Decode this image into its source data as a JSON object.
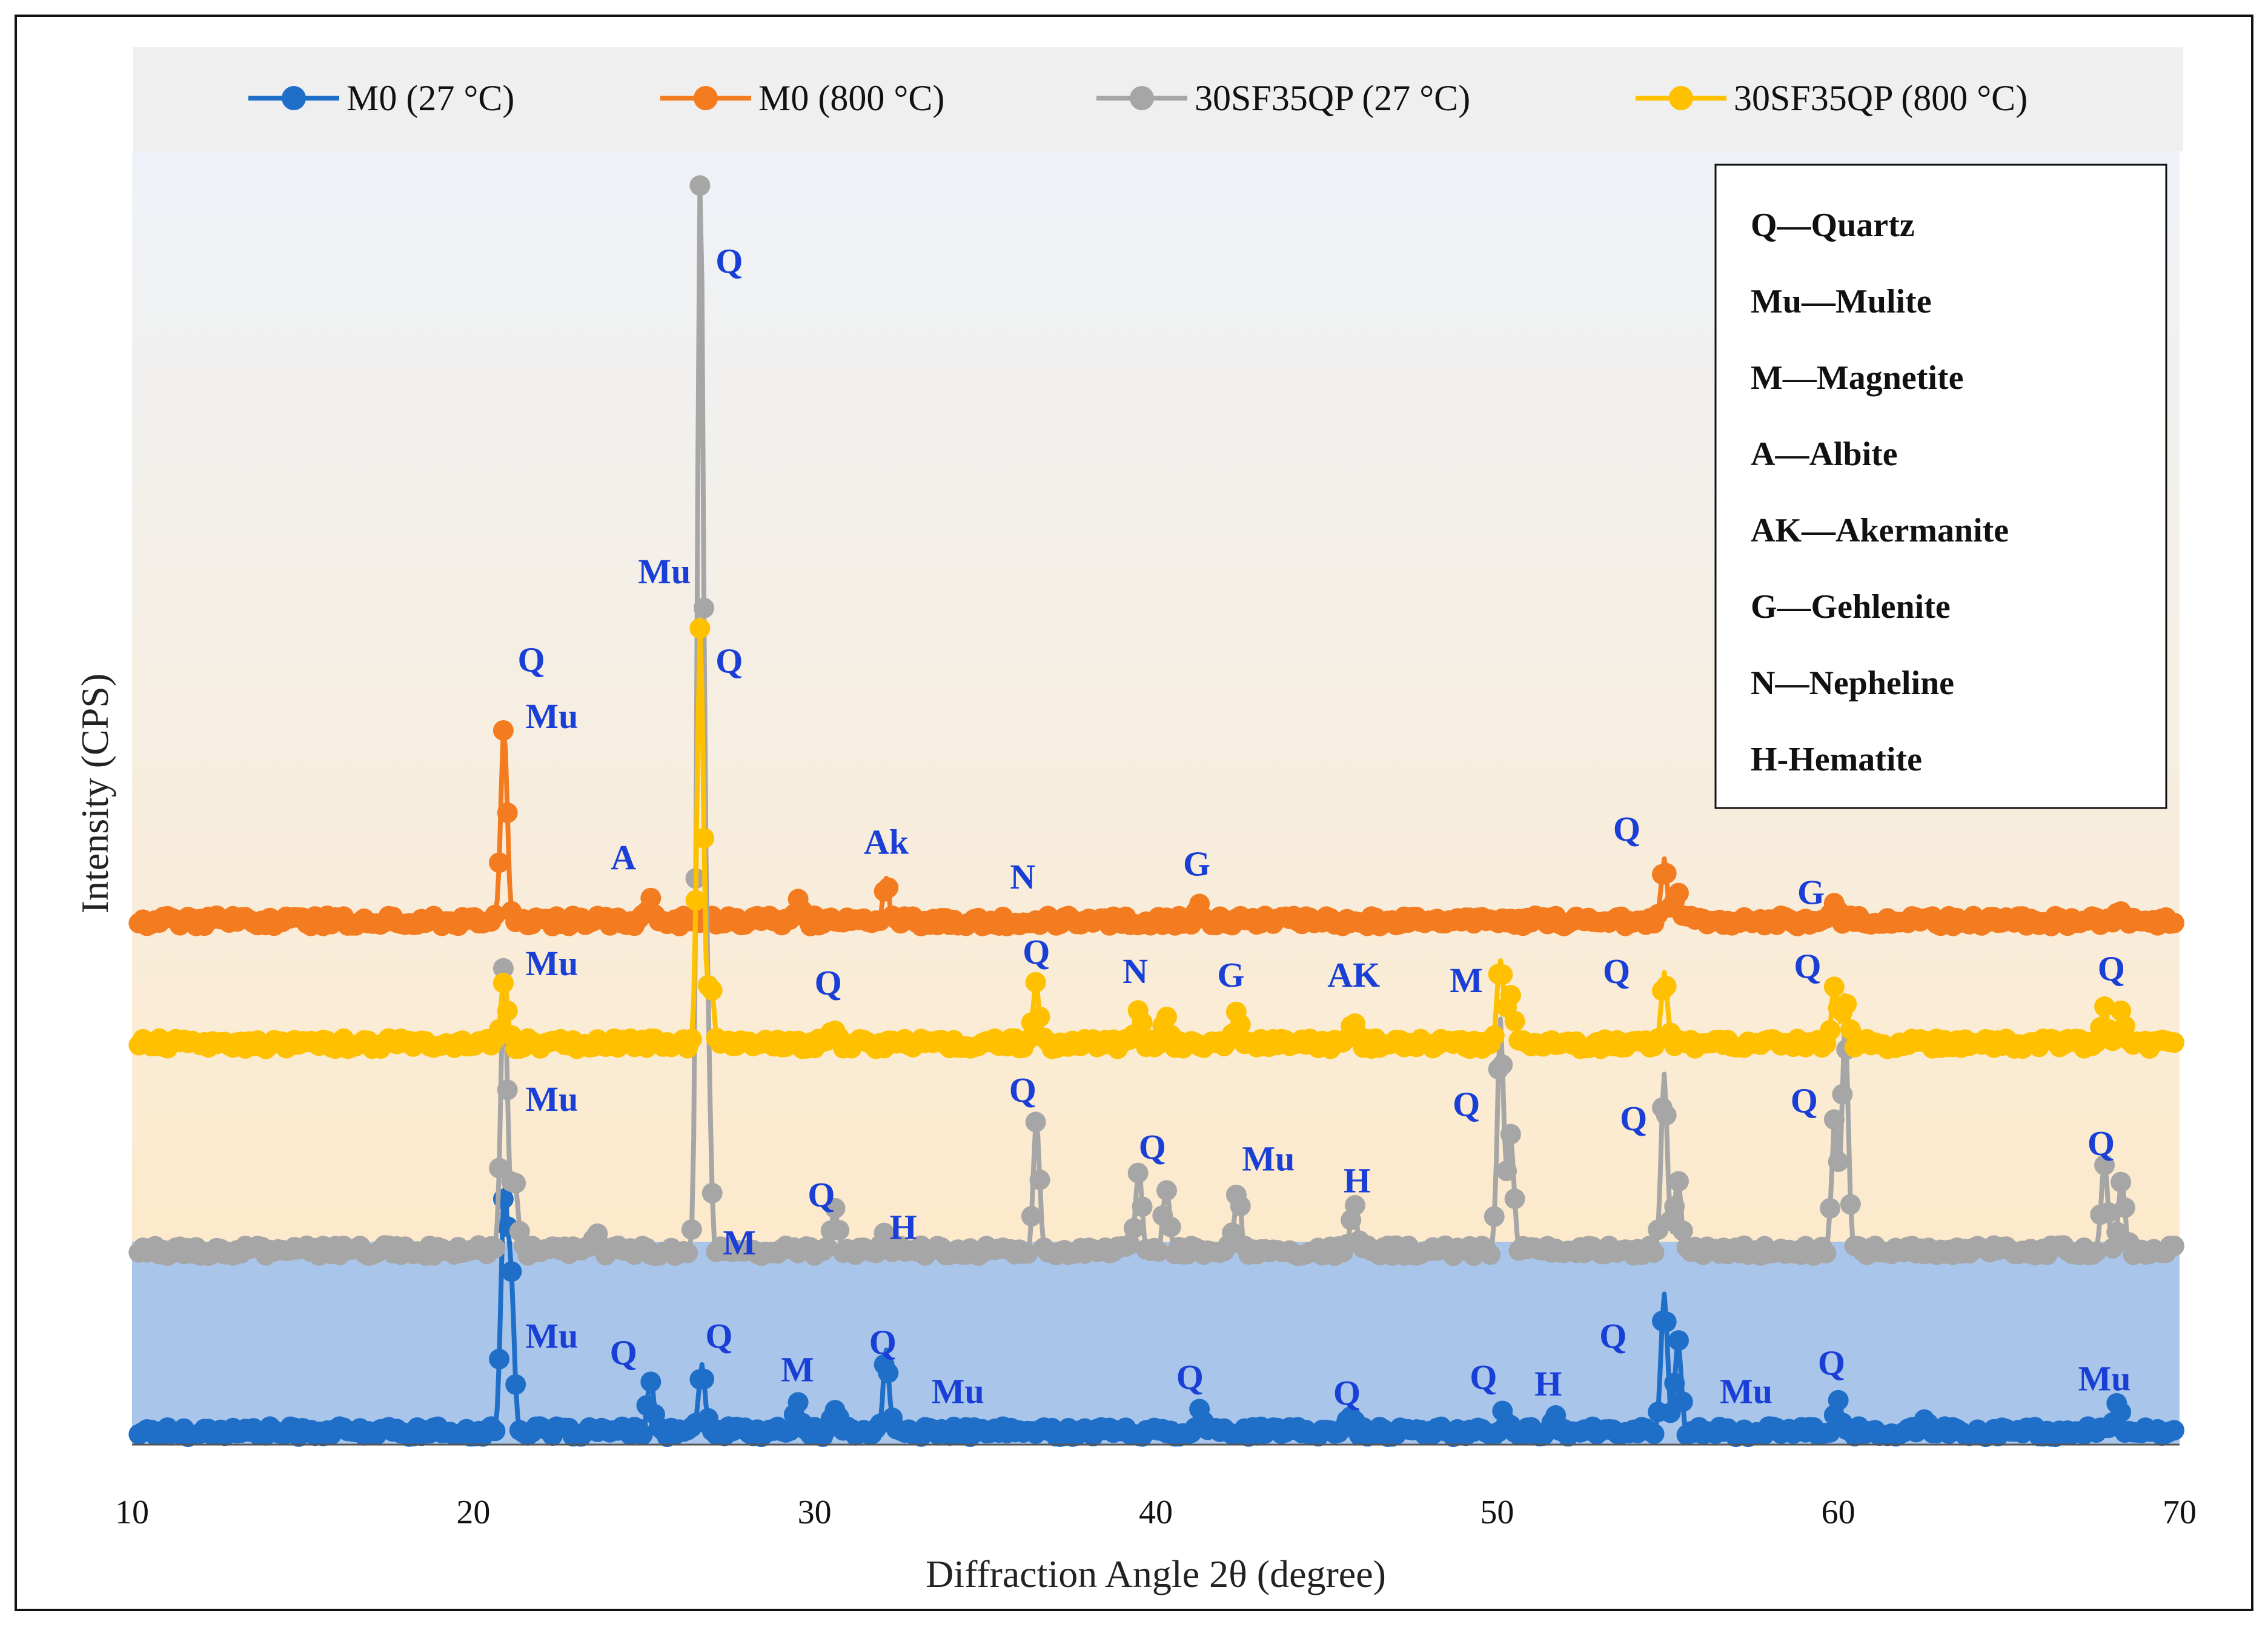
{
  "chart_data": {
    "type": "line",
    "title": "",
    "xlabel": "Diffraction Angle 2θ  (degree)",
    "ylabel": "Intensity (CPS)",
    "xlim": [
      10,
      70
    ],
    "ylim": [
      0,
      1000
    ],
    "x_ticks": [
      10,
      20,
      30,
      40,
      50,
      60,
      70
    ],
    "series": [
      {
        "name": "M0 (27 °C)",
        "color": "#1f6fc9",
        "baseline": 10,
        "peaks": [
          [
            20.9,
            180
          ],
          [
            21.1,
            120
          ],
          [
            25.2,
            40
          ],
          [
            26.7,
            50
          ],
          [
            29.5,
            25
          ],
          [
            30.6,
            20
          ],
          [
            32.1,
            60
          ],
          [
            41.3,
            20
          ],
          [
            45.7,
            15
          ],
          [
            50.2,
            15
          ],
          [
            51.7,
            15
          ],
          [
            54.9,
            110
          ],
          [
            55.3,
            70
          ],
          [
            60.0,
            25
          ],
          [
            62.5,
            12
          ],
          [
            68.2,
            20
          ]
        ]
      },
      {
        "name": "M0 (800 °C)",
        "color": "#f47c20",
        "baseline": 405,
        "peaks": [
          [
            20.9,
            150
          ],
          [
            25.2,
            20
          ],
          [
            29.5,
            15
          ],
          [
            32.1,
            30
          ],
          [
            41.3,
            10
          ],
          [
            54.9,
            45
          ],
          [
            55.3,
            25
          ],
          [
            59.9,
            15
          ],
          [
            68.2,
            10
          ]
        ]
      },
      {
        "name": "30SF35QP (27 °C)",
        "color": "#a6a6a6",
        "baseline": 150,
        "peaks": [
          [
            20.9,
            220
          ],
          [
            21.2,
            60
          ],
          [
            23.6,
            15
          ],
          [
            26.65,
            820
          ],
          [
            26.85,
            180
          ],
          [
            30.6,
            30
          ],
          [
            32.1,
            15
          ],
          [
            36.5,
            100
          ],
          [
            39.5,
            65
          ],
          [
            40.3,
            50
          ],
          [
            42.4,
            50
          ],
          [
            45.8,
            35
          ],
          [
            50.1,
            175
          ],
          [
            50.4,
            90
          ],
          [
            54.9,
            135
          ],
          [
            55.3,
            55
          ],
          [
            59.9,
            100
          ],
          [
            60.2,
            175
          ],
          [
            67.8,
            70
          ],
          [
            68.3,
            55
          ]
        ]
      },
      {
        "name": "30SF35QP (800 °C)",
        "color": "#ffc000",
        "baseline": 310,
        "peaks": [
          [
            20.9,
            50
          ],
          [
            26.65,
            320
          ],
          [
            26.95,
            45
          ],
          [
            30.6,
            12
          ],
          [
            36.5,
            45
          ],
          [
            39.5,
            30
          ],
          [
            40.3,
            20
          ],
          [
            42.4,
            25
          ],
          [
            45.8,
            18
          ],
          [
            50.1,
            65
          ],
          [
            50.4,
            40
          ],
          [
            54.9,
            55
          ],
          [
            59.9,
            45
          ],
          [
            60.2,
            35
          ],
          [
            67.8,
            28
          ],
          [
            68.3,
            28
          ]
        ]
      }
    ],
    "legend_position": "top",
    "annotations": [
      {
        "text": "Q",
        "x": 21.7,
        "y": 598
      },
      {
        "text": "Mu",
        "x": 22.3,
        "y": 554
      },
      {
        "text": "A",
        "x": 24.4,
        "y": 445
      },
      {
        "text": "Ak",
        "x": 32.1,
        "y": 457
      },
      {
        "text": "N",
        "x": 36.1,
        "y": 430
      },
      {
        "text": "G",
        "x": 41.2,
        "y": 440
      },
      {
        "text": "Q",
        "x": 53.8,
        "y": 467
      },
      {
        "text": "G",
        "x": 59.2,
        "y": 418
      },
      {
        "text": "Q",
        "x": 27.5,
        "y": 906
      },
      {
        "text": "Mu",
        "x": 25.6,
        "y": 666
      },
      {
        "text": "Q",
        "x": 27.5,
        "y": 597
      },
      {
        "text": "Mu",
        "x": 22.3,
        "y": 363
      },
      {
        "text": "Q",
        "x": 30.4,
        "y": 348
      },
      {
        "text": "Q",
        "x": 36.5,
        "y": 372
      },
      {
        "text": "N",
        "x": 39.4,
        "y": 357
      },
      {
        "text": "G",
        "x": 42.2,
        "y": 354
      },
      {
        "text": "AK",
        "x": 45.8,
        "y": 354
      },
      {
        "text": "M",
        "x": 49.1,
        "y": 350
      },
      {
        "text": "Q",
        "x": 53.5,
        "y": 357
      },
      {
        "text": "Q",
        "x": 59.1,
        "y": 361
      },
      {
        "text": "Q",
        "x": 68.0,
        "y": 359
      },
      {
        "text": "Mu",
        "x": 22.3,
        "y": 258
      },
      {
        "text": "Q",
        "x": 36.1,
        "y": 265
      },
      {
        "text": "Q",
        "x": 39.9,
        "y": 221
      },
      {
        "text": "Mu",
        "x": 43.3,
        "y": 212
      },
      {
        "text": "H",
        "x": 45.9,
        "y": 195
      },
      {
        "text": "Q",
        "x": 49.1,
        "y": 254
      },
      {
        "text": "Q",
        "x": 54.0,
        "y": 243
      },
      {
        "text": "Q",
        "x": 59.0,
        "y": 257
      },
      {
        "text": "Q",
        "x": 67.7,
        "y": 224
      },
      {
        "text": "Q",
        "x": 30.2,
        "y": 184
      },
      {
        "text": "H",
        "x": 32.6,
        "y": 159
      },
      {
        "text": "M",
        "x": 27.8,
        "y": 147
      },
      {
        "text": "Mu",
        "x": 22.3,
        "y": 75
      },
      {
        "text": "Q",
        "x": 24.4,
        "y": 62
      },
      {
        "text": "Q",
        "x": 27.2,
        "y": 75
      },
      {
        "text": "M",
        "x": 29.5,
        "y": 49
      },
      {
        "text": "Q",
        "x": 32.0,
        "y": 70
      },
      {
        "text": "Mu",
        "x": 34.2,
        "y": 32
      },
      {
        "text": "Q",
        "x": 41.0,
        "y": 43
      },
      {
        "text": "Q",
        "x": 45.6,
        "y": 31
      },
      {
        "text": "Q",
        "x": 49.6,
        "y": 43
      },
      {
        "text": "H",
        "x": 51.5,
        "y": 38
      },
      {
        "text": "Q",
        "x": 53.4,
        "y": 75
      },
      {
        "text": "Mu",
        "x": 57.3,
        "y": 32
      },
      {
        "text": "Q",
        "x": 59.8,
        "y": 54
      },
      {
        "text": "Mu",
        "x": 67.8,
        "y": 42
      }
    ],
    "phase_key": [
      "Q—Quartz",
      "Mu—Mulite",
      "M—Magnetite",
      "A—Albite",
      "AK—Akermanite",
      "G—Gehlenite",
      "N—Nepheline",
      "H-Hematite"
    ]
  }
}
